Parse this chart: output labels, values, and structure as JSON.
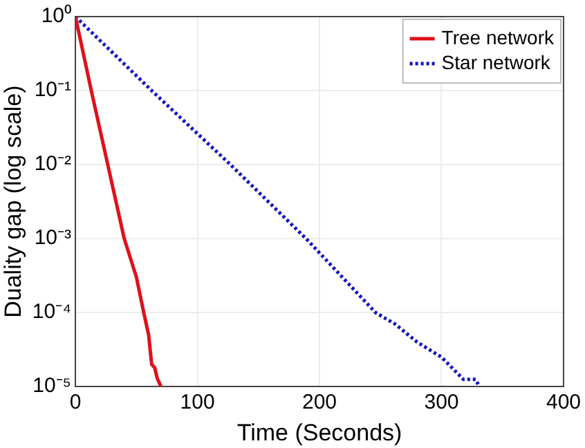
{
  "chart_data": {
    "type": "line",
    "xlabel": "Time (Seconds)",
    "ylabel": "Duality gap (log scale)",
    "log": "y",
    "grid": true,
    "legend": "top right",
    "marker": "none",
    "xlim": [
      0,
      400
    ],
    "xticks": [
      0,
      100,
      200,
      300,
      400
    ],
    "ylim": [
      1e-05,
      1
    ],
    "yticks": [
      {
        "value": 1,
        "label": "10⁰"
      },
      {
        "value": 0.1,
        "label": "10⁻¹"
      },
      {
        "value": 0.01,
        "label": "10⁻²"
      },
      {
        "value": 0.001,
        "label": "10⁻³"
      },
      {
        "value": 0.0001,
        "label": "10⁻⁴"
      },
      {
        "value": 1e-05,
        "label": "10⁻⁵"
      }
    ],
    "series": [
      {
        "name": "Tree network",
        "color": "#e0101a",
        "line_style": "solid",
        "x": [
          0,
          13,
          26.5,
          40,
          50,
          56,
          60,
          62.5,
          65,
          67,
          69,
          70
        ],
        "values": [
          1,
          0.1,
          0.01,
          0.001,
          0.0003,
          0.0001,
          5e-05,
          2e-05,
          1.8e-05,
          1.3e-05,
          1.1e-05,
          1e-05
        ]
      },
      {
        "name": "Star network",
        "color": "#1010c0",
        "line_style": "dotted",
        "x": [
          0,
          62.5,
          127,
          189,
          246,
          262,
          280,
          300,
          318,
          324,
          328,
          331
        ],
        "values": [
          1,
          0.1,
          0.01,
          0.001,
          0.0001,
          7e-05,
          4e-05,
          2.5e-05,
          1.25e-05,
          1.25e-05,
          1.25e-05,
          1e-05
        ]
      }
    ]
  }
}
